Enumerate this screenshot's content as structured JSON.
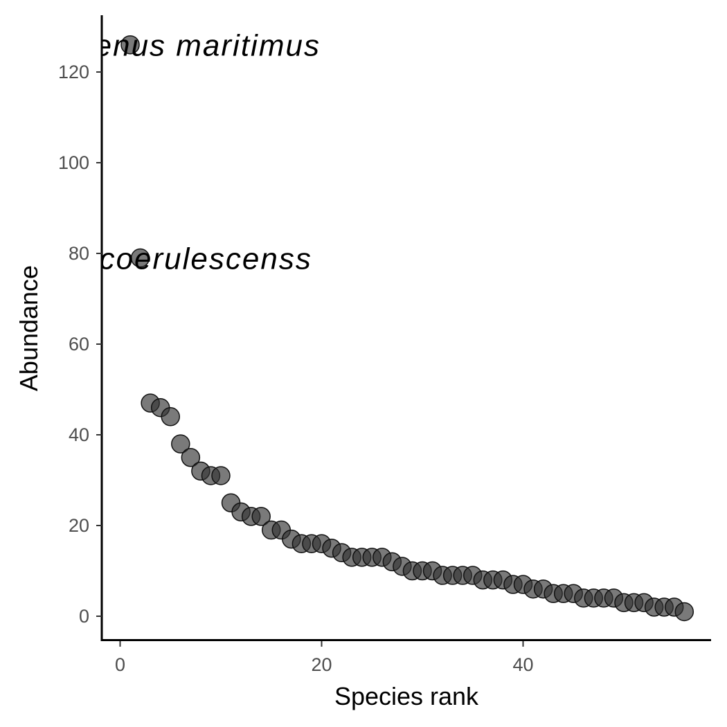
{
  "chart_data": {
    "type": "scatter",
    "title": "",
    "xlabel": "Species rank",
    "ylabel": "Abundance",
    "xlim": [
      -3,
      59
    ],
    "ylim": [
      -5,
      131
    ],
    "x_ticks": [
      0,
      20,
      40
    ],
    "y_ticks": [
      0,
      20,
      40,
      60,
      80,
      100,
      120
    ],
    "grid": false,
    "point_color": "#333333",
    "point_opacity": 0.65,
    "series": [
      {
        "x": [
          1,
          2,
          3,
          4,
          5,
          6,
          7,
          8,
          9,
          10,
          11,
          12,
          13,
          14,
          15,
          16,
          17,
          18,
          19,
          20,
          21,
          22,
          23,
          24,
          25,
          26,
          27,
          28,
          29,
          30,
          31,
          32,
          33,
          34,
          35,
          36,
          37,
          38,
          39,
          40,
          41,
          42,
          43,
          44,
          45,
          46,
          47,
          48,
          49,
          50,
          51,
          52,
          53,
          54,
          55,
          56
        ],
        "values": [
          126,
          79,
          47,
          46,
          44,
          38,
          35,
          32,
          31,
          31,
          25,
          23,
          22,
          22,
          19,
          19,
          17,
          16,
          16,
          16,
          15,
          14,
          13,
          13,
          13,
          13,
          12,
          11,
          10,
          10,
          10,
          9,
          9,
          9,
          9,
          8,
          8,
          8,
          7,
          7,
          6,
          6,
          5,
          5,
          5,
          4,
          4,
          4,
          4,
          3,
          3,
          3,
          2,
          2,
          2,
          1
        ]
      }
    ],
    "annotations": [
      {
        "text": "Bolboschoenus maritimus",
        "x": 1,
        "y": 126
      },
      {
        "text": "Phalaris coerulescenss",
        "x": 2,
        "y": 79
      }
    ]
  }
}
